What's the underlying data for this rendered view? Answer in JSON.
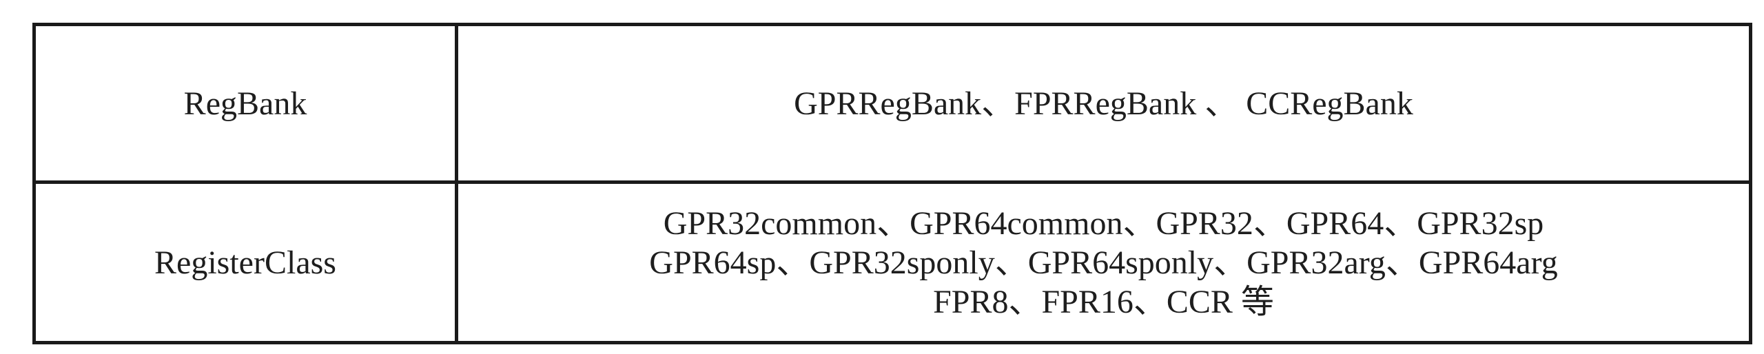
{
  "table": {
    "rows": [
      {
        "label": "RegBank",
        "lines": [
          "GPRRegBank、FPRRegBank 、 CCRegBank"
        ]
      },
      {
        "label": "RegisterClass",
        "lines": [
          "GPR32common、GPR64common、GPR32、GPR64、GPR32sp",
          "GPR64sp、GPR32sponly、GPR64sponly、GPR32arg、GPR64arg",
          "FPR8、FPR16、CCR 等"
        ]
      }
    ]
  }
}
